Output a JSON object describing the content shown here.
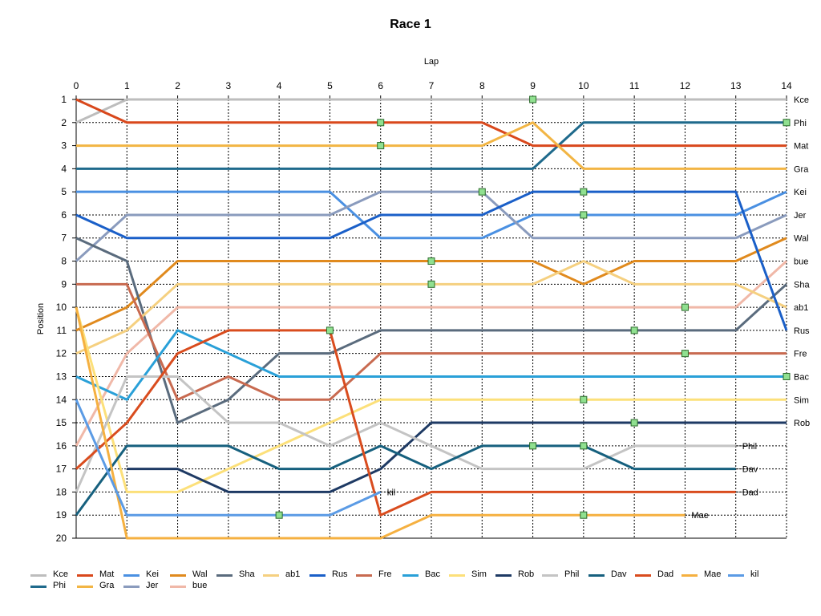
{
  "chart_data": {
    "type": "line",
    "title": "Race 1",
    "xlabel": "Lap",
    "ylabel": "Position",
    "x": [
      0,
      1,
      2,
      3,
      4,
      5,
      6,
      7,
      8,
      9,
      10,
      11,
      12,
      13,
      14
    ],
    "xlim": [
      0,
      14
    ],
    "ylim": [
      1,
      20
    ],
    "y_inverted": true,
    "x_axis_position": "top",
    "grid": true,
    "legend_position": "bottom",
    "series": [
      {
        "name": "Kce",
        "color": "#bdbdbd",
        "end_label": "Kce",
        "values": [
          2,
          1,
          1,
          1,
          1,
          1,
          1,
          1,
          1,
          1,
          1,
          1,
          1,
          1,
          1
        ],
        "pit_laps": [
          9
        ]
      },
      {
        "name": "Phi",
        "color": "#1f6a8c",
        "end_label": "Phi",
        "values": [
          4,
          4,
          4,
          4,
          4,
          4,
          4,
          4,
          4,
          4,
          2,
          2,
          2,
          2,
          2
        ],
        "pit_laps": [
          14
        ]
      },
      {
        "name": "Mat",
        "color": "#d9481c",
        "end_label": "Mat",
        "values": [
          1,
          2,
          2,
          2,
          2,
          2,
          2,
          2,
          2,
          3,
          3,
          3,
          3,
          3,
          3
        ],
        "pit_laps": [
          6
        ]
      },
      {
        "name": "Gra",
        "color": "#f2b544",
        "end_label": "Gra",
        "values": [
          3,
          3,
          3,
          3,
          3,
          3,
          3,
          3,
          3,
          2,
          4,
          4,
          4,
          4,
          4
        ],
        "pit_laps": [
          6
        ]
      },
      {
        "name": "Kei",
        "color": "#4a90e2",
        "end_label": "Kei",
        "values": [
          5,
          5,
          5,
          5,
          5,
          5,
          7,
          7,
          7,
          6,
          6,
          6,
          6,
          6,
          5
        ],
        "pit_laps": [
          10
        ]
      },
      {
        "name": "Jer",
        "color": "#8a9bbd",
        "end_label": "Jer",
        "values": [
          8,
          6,
          6,
          6,
          6,
          6,
          5,
          5,
          5,
          7,
          7,
          7,
          7,
          7,
          6
        ],
        "pit_laps": [
          8
        ]
      },
      {
        "name": "Wal",
        "color": "#e08a1e",
        "end_label": "Wal",
        "values": [
          11,
          10,
          8,
          8,
          8,
          8,
          8,
          8,
          8,
          8,
          9,
          8,
          8,
          8,
          7
        ],
        "pit_laps": [
          7
        ]
      },
      {
        "name": "bue",
        "color": "#f0b8a8",
        "end_label": "bue",
        "values": [
          16,
          12,
          10,
          10,
          10,
          10,
          10,
          10,
          10,
          10,
          10,
          10,
          10,
          10,
          8
        ],
        "pit_laps": [
          12
        ]
      },
      {
        "name": "Sha",
        "color": "#5a6b7d",
        "end_label": "Sha",
        "values": [
          7,
          8,
          15,
          14,
          12,
          12,
          11,
          11,
          11,
          11,
          11,
          11,
          11,
          11,
          9
        ],
        "pit_laps": [
          11
        ]
      },
      {
        "name": "ab1",
        "color": "#f5d080",
        "end_label": "ab1",
        "values": [
          12,
          11,
          9,
          9,
          9,
          9,
          9,
          9,
          9,
          9,
          8,
          9,
          9,
          9,
          10
        ],
        "pit_laps": [
          7
        ]
      },
      {
        "name": "Rus",
        "color": "#1a5fc8",
        "end_label": "Rus",
        "values": [
          6,
          7,
          7,
          7,
          7,
          7,
          6,
          6,
          6,
          5,
          5,
          5,
          5,
          5,
          11
        ],
        "pit_laps": [
          10
        ]
      },
      {
        "name": "Fre",
        "color": "#c86a50",
        "end_label": "Fre",
        "values": [
          9,
          9,
          14,
          13,
          14,
          14,
          12,
          12,
          12,
          12,
          12,
          12,
          12,
          12,
          12
        ],
        "pit_laps": [
          12
        ]
      },
      {
        "name": "Bac",
        "color": "#29a0d8",
        "end_label": "Bac",
        "values": [
          13,
          14,
          11,
          12,
          13,
          13,
          13,
          13,
          13,
          13,
          13,
          13,
          13,
          13,
          13
        ],
        "pit_laps": [
          14
        ]
      },
      {
        "name": "Sim",
        "color": "#fce07a",
        "end_label": "Sim",
        "values": [
          10,
          18,
          18,
          17,
          16,
          15,
          14,
          14,
          14,
          14,
          14,
          14,
          14,
          14,
          14
        ],
        "pit_laps": [
          10
        ]
      },
      {
        "name": "Rob",
        "color": "#1e3a64",
        "end_label": "Rob",
        "values": [
          null,
          17,
          17,
          18,
          18,
          18,
          17,
          15,
          15,
          15,
          15,
          15,
          15,
          15,
          15
        ],
        "pit_laps": [
          11
        ]
      },
      {
        "name": "Phil",
        "color": "#c4c4c4",
        "end_label": "Phil",
        "values": [
          18,
          13,
          13,
          15,
          15,
          16,
          15,
          16,
          17,
          17,
          17,
          16,
          16,
          16,
          null
        ],
        "pit_laps": []
      },
      {
        "name": "Dav",
        "color": "#16607e",
        "end_label": "Dav",
        "values": [
          19,
          16,
          16,
          16,
          17,
          17,
          16,
          17,
          16,
          16,
          16,
          17,
          17,
          17,
          null
        ],
        "pit_laps": [
          9,
          10
        ]
      },
      {
        "name": "Dad",
        "color": "#d94c1e",
        "end_label": "Dad",
        "values": [
          17,
          15,
          12,
          11,
          11,
          11,
          19,
          18,
          18,
          18,
          18,
          18,
          18,
          18,
          null
        ],
        "pit_laps": [
          5
        ]
      },
      {
        "name": "Mae",
        "color": "#f5b040",
        "end_label": "Mae",
        "values": [
          10,
          20,
          20,
          20,
          20,
          20,
          20,
          19,
          19,
          19,
          19,
          19,
          19,
          null,
          null
        ],
        "pit_laps": [
          10
        ]
      },
      {
        "name": "kil",
        "color": "#5b9be5",
        "end_label": "kil",
        "values": [
          14,
          19,
          19,
          19,
          19,
          19,
          18,
          null,
          null,
          null,
          null,
          null,
          null,
          null,
          null
        ],
        "pit_laps": [
          4
        ]
      }
    ]
  }
}
